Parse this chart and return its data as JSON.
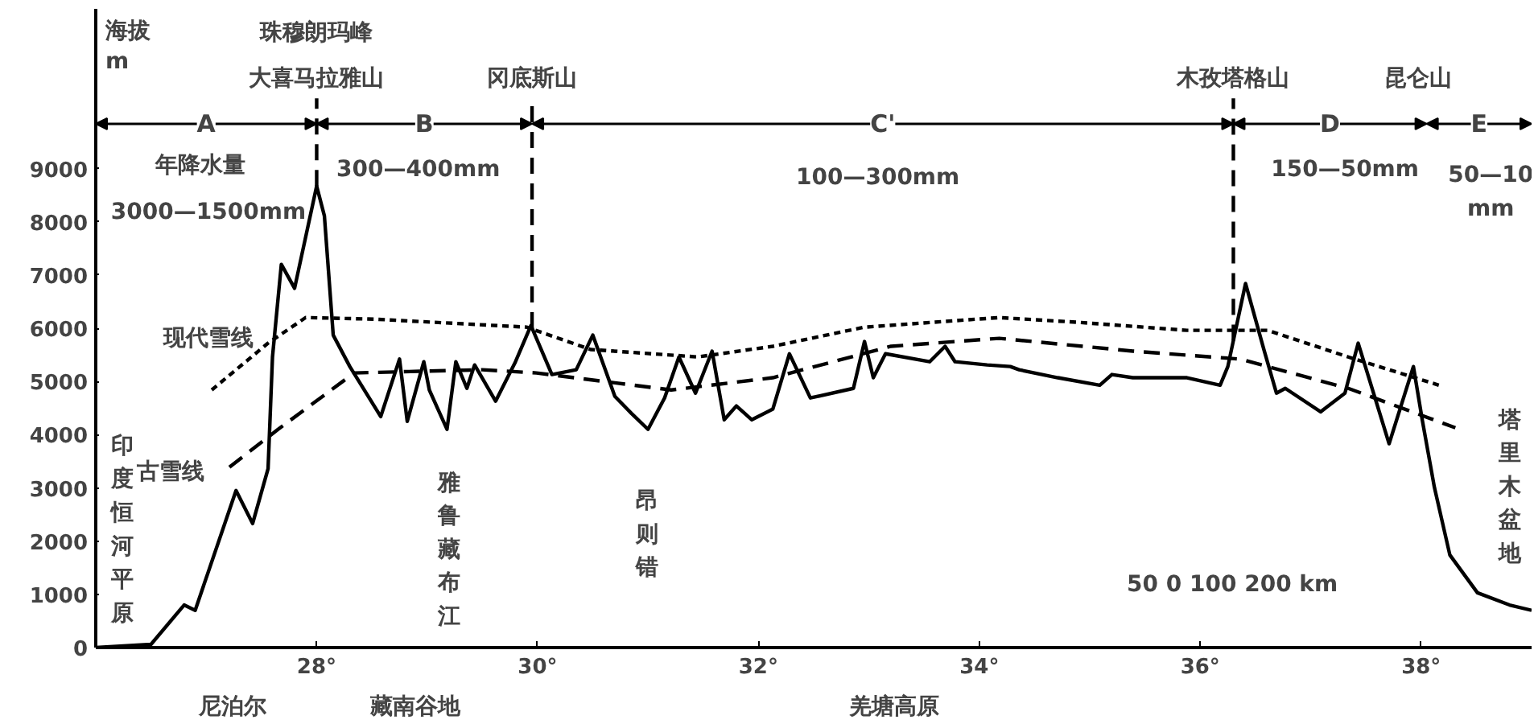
{
  "chart_data": {
    "type": "line",
    "ylabel": "海拔\nm",
    "xlim": [
      26,
      39
    ],
    "ylim": [
      0,
      12000
    ],
    "xticks": [
      {
        "value": 28,
        "label": "28°"
      },
      {
        "value": 30,
        "label": "30°"
      },
      {
        "value": 32,
        "label": "32°"
      },
      {
        "value": 34,
        "label": "34°"
      },
      {
        "value": 36,
        "label": "36°"
      },
      {
        "value": 38,
        "label": "38°"
      }
    ],
    "yticks": [
      0,
      1000,
      2000,
      3000,
      4000,
      5000,
      6000,
      7000,
      8000,
      9000
    ],
    "grid": false,
    "marker": "none",
    "series": [
      {
        "color": "#000000",
        "line_style": "solid",
        "x": [
          26.0,
          26.5,
          26.8,
          26.9,
          27.27,
          27.42,
          27.56,
          27.6,
          27.68,
          27.8,
          28.0,
          28.07,
          28.15,
          28.3,
          28.58,
          28.75,
          28.82,
          28.97,
          29.02,
          29.18,
          29.26,
          29.36,
          29.43,
          29.62,
          29.8,
          29.94,
          30.13,
          30.35,
          30.5,
          30.7,
          30.85,
          31.0,
          31.15,
          31.28,
          31.43,
          31.58,
          31.69,
          31.8,
          31.94,
          32.13,
          32.28,
          32.47,
          32.86,
          32.96,
          33.04,
          33.15,
          33.55,
          33.69,
          33.78,
          34.07,
          34.28,
          34.36,
          34.71,
          35.09,
          35.2,
          35.39,
          35.88,
          36.18,
          36.25,
          36.41,
          36.58,
          36.69,
          36.77,
          37.09,
          37.31,
          37.43,
          37.71,
          37.93,
          38.01,
          38.12,
          38.26,
          38.51,
          38.8,
          39.0
        ],
        "values": [
          0,
          60,
          800,
          700,
          2950,
          2330,
          3360,
          5460,
          7200,
          6750,
          8670,
          8110,
          5870,
          5280,
          4340,
          5420,
          4250,
          5370,
          4840,
          4100,
          5370,
          4870,
          5310,
          4630,
          5370,
          6050,
          5130,
          5220,
          5870,
          4720,
          4400,
          4100,
          4690,
          5460,
          4780,
          5570,
          4280,
          4540,
          4280,
          4480,
          5520,
          4690,
          4870,
          5750,
          5070,
          5520,
          5370,
          5660,
          5370,
          5310,
          5280,
          5220,
          5070,
          4930,
          5130,
          5070,
          5070,
          4930,
          5280,
          6840,
          5570,
          4780,
          4870,
          4430,
          4780,
          5720,
          3830,
          5280,
          4280,
          3010,
          1740,
          1030,
          800,
          700
        ]
      },
      {
        "color": "#000000",
        "line_style": "dotted",
        "x": [
          27.05,
          27.56,
          27.9,
          28.53,
          29.9,
          30.48,
          31.45,
          32.13,
          32.96,
          34.18,
          34.9,
          35.88,
          36.61,
          37.34,
          38.16
        ],
        "values": [
          4840,
          5720,
          6200,
          6170,
          6020,
          5600,
          5460,
          5660,
          6020,
          6200,
          6110,
          5960,
          5960,
          5460,
          4930
        ]
      },
      {
        "color": "#000000",
        "line_style": "dashed",
        "x": [
          27.21,
          27.65,
          28.34,
          29.5,
          29.99,
          31.21,
          32.13,
          33.2,
          34.18,
          35.39,
          36.36,
          37.34,
          38.31
        ],
        "values": [
          3390,
          4100,
          5160,
          5220,
          5160,
          4840,
          5070,
          5660,
          5810,
          5570,
          5420,
          4870,
          4130
        ]
      }
    ],
    "ref_lines": [
      {
        "axis": "x",
        "value": 28.0,
        "label": "大喜马拉雅山",
        "line_style": "dashed"
      },
      {
        "axis": "x",
        "value": 29.95,
        "label": "冈底斯山",
        "line_style": "dashed"
      },
      {
        "axis": "x",
        "value": 36.3,
        "label": "木孜塔格山",
        "line_style": "dashed"
      }
    ],
    "annotations": [
      "珠穆朗玛峰",
      "昆仑山",
      "年降水量",
      "3000—1500mm",
      "300—400mm",
      "100—300mm",
      "150—50mm",
      "50—10\nmm",
      "现代雪线",
      "古雪线",
      "印度恒河平原",
      "雅鲁藏布江",
      "昂则错",
      "塔里木盆地",
      "50 0 100 200 km",
      "尼泊尔",
      "藏南谷地",
      "羌塘高原",
      "A",
      "B",
      "C'",
      "D",
      "E"
    ]
  }
}
